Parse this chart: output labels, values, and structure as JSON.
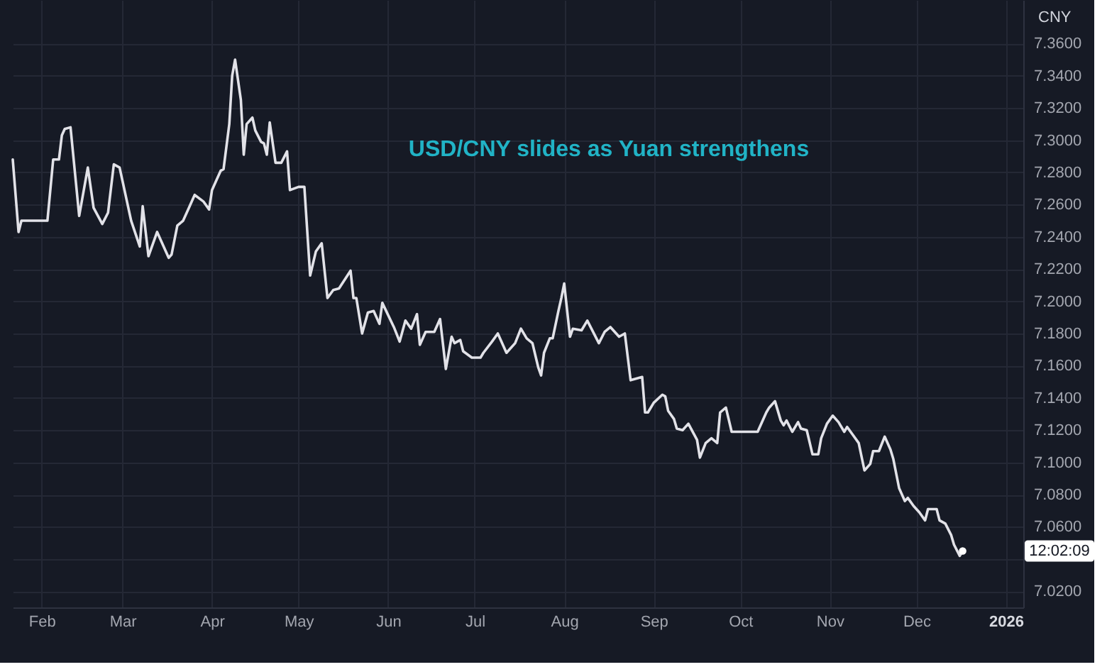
{
  "chart_data": {
    "type": "line",
    "title": "USD/CNY slides as Yuan strengthens",
    "ylabel": "CNY",
    "x": [
      "2025-01-22",
      "2025-01-24",
      "2025-01-25",
      "2025-02-03",
      "2025-02-05",
      "2025-02-07",
      "2025-02-08",
      "2025-02-09",
      "2025-02-11",
      "2025-02-14",
      "2025-02-17",
      "2025-02-19",
      "2025-02-22",
      "2025-02-24",
      "2025-02-26",
      "2025-02-28",
      "2025-03-04",
      "2025-03-07",
      "2025-03-08",
      "2025-03-10",
      "2025-03-13",
      "2025-03-17",
      "2025-03-18",
      "2025-03-20",
      "2025-03-22",
      "2025-03-24",
      "2025-03-26",
      "2025-03-29",
      "2025-03-31",
      "2025-04-01",
      "2025-04-04",
      "2025-04-05",
      "2025-04-07",
      "2025-04-08",
      "2025-04-09",
      "2025-04-11",
      "2025-04-12",
      "2025-04-13",
      "2025-04-15",
      "2025-04-16",
      "2025-04-18",
      "2025-04-19",
      "2025-04-20",
      "2025-04-21",
      "2025-04-23",
      "2025-04-25",
      "2025-04-27",
      "2025-04-28",
      "2025-05-01",
      "2025-05-03",
      "2025-05-05",
      "2025-05-07",
      "2025-05-09",
      "2025-05-11",
      "2025-05-13",
      "2025-05-15",
      "2025-05-19",
      "2025-05-20",
      "2025-05-21",
      "2025-05-23",
      "2025-05-25",
      "2025-05-27",
      "2025-05-29",
      "2025-05-30",
      "2025-06-03",
      "2025-06-05",
      "2025-06-07",
      "2025-06-09",
      "2025-06-11",
      "2025-06-12",
      "2025-06-14",
      "2025-06-17",
      "2025-06-19",
      "2025-06-21",
      "2025-06-23",
      "2025-06-24",
      "2025-06-26",
      "2025-06-27",
      "2025-06-30",
      "2025-07-03",
      "2025-07-04",
      "2025-07-07",
      "2025-07-09",
      "2025-07-12",
      "2025-07-15",
      "2025-07-17",
      "2025-07-19",
      "2025-07-21",
      "2025-07-23",
      "2025-07-24",
      "2025-07-25",
      "2025-07-27",
      "2025-07-28",
      "2025-07-30",
      "2025-07-31",
      "2025-08-01",
      "2025-08-03",
      "2025-08-04",
      "2025-08-07",
      "2025-08-09",
      "2025-08-13",
      "2025-08-15",
      "2025-08-17",
      "2025-08-20",
      "2025-08-22",
      "2025-08-24",
      "2025-08-28",
      "2025-08-29",
      "2025-08-30",
      "2025-09-01",
      "2025-09-04",
      "2025-09-05",
      "2025-09-06",
      "2025-09-08",
      "2025-09-09",
      "2025-09-11",
      "2025-09-13",
      "2025-09-16",
      "2025-09-17",
      "2025-09-19",
      "2025-09-21",
      "2025-09-23",
      "2025-09-24",
      "2025-09-26",
      "2025-09-28",
      "2025-10-07",
      "2025-10-10",
      "2025-10-11",
      "2025-10-13",
      "2025-10-15",
      "2025-10-16",
      "2025-10-17",
      "2025-10-19",
      "2025-10-21",
      "2025-10-22",
      "2025-10-24",
      "2025-10-26",
      "2025-10-28",
      "2025-10-29",
      "2025-10-31",
      "2025-11-02",
      "2025-11-04",
      "2025-11-06",
      "2025-11-07",
      "2025-11-09",
      "2025-11-11",
      "2025-11-13",
      "2025-11-15",
      "2025-11-16",
      "2025-11-18",
      "2025-11-20",
      "2025-11-22",
      "2025-11-23",
      "2025-11-25",
      "2025-11-27",
      "2025-11-28",
      "2025-11-30",
      "2025-12-02",
      "2025-12-04",
      "2025-12-05",
      "2025-12-08",
      "2025-12-09",
      "2025-12-11",
      "2025-12-13",
      "2025-12-14",
      "2025-12-16",
      "2025-12-17"
    ],
    "series": [
      {
        "color": "#e2e2e8",
        "values": [
          7.288,
          7.243,
          7.25,
          7.25,
          7.288,
          7.288,
          7.303,
          7.307,
          7.308,
          7.253,
          7.283,
          7.258,
          7.248,
          7.255,
          7.285,
          7.283,
          7.25,
          7.234,
          7.259,
          7.228,
          7.243,
          7.227,
          7.229,
          7.247,
          7.25,
          7.258,
          7.266,
          7.262,
          7.257,
          7.269,
          7.281,
          7.282,
          7.31,
          7.34,
          7.35,
          7.325,
          7.291,
          7.31,
          7.314,
          7.306,
          7.299,
          7.298,
          7.291,
          7.311,
          7.286,
          7.286,
          7.293,
          7.269,
          7.271,
          7.271,
          7.216,
          7.231,
          7.236,
          7.202,
          7.207,
          7.208,
          7.219,
          7.202,
          7.202,
          7.18,
          7.193,
          7.194,
          7.186,
          7.199,
          7.184,
          7.175,
          7.188,
          7.183,
          7.192,
          7.173,
          7.181,
          7.181,
          7.189,
          7.158,
          7.178,
          7.174,
          7.176,
          7.169,
          7.165,
          7.165,
          7.168,
          7.175,
          7.18,
          7.168,
          7.174,
          7.183,
          7.177,
          7.174,
          7.159,
          7.154,
          7.168,
          7.177,
          7.177,
          7.194,
          7.202,
          7.211,
          7.178,
          7.183,
          7.182,
          7.188,
          7.174,
          7.181,
          7.184,
          7.178,
          7.18,
          7.151,
          7.153,
          7.131,
          7.131,
          7.137,
          7.142,
          7.141,
          7.132,
          7.127,
          7.121,
          7.12,
          7.124,
          7.114,
          7.103,
          7.112,
          7.115,
          7.112,
          7.131,
          7.134,
          7.119,
          7.119,
          7.131,
          7.134,
          7.138,
          7.126,
          7.123,
          7.126,
          7.119,
          7.125,
          7.121,
          7.12,
          7.105,
          7.105,
          7.115,
          7.124,
          7.129,
          7.125,
          7.119,
          7.122,
          7.117,
          7.112,
          7.095,
          7.099,
          7.107,
          7.107,
          7.116,
          7.108,
          7.102,
          7.084,
          7.076,
          7.078,
          7.073,
          7.069,
          7.064,
          7.071,
          7.071,
          7.064,
          7.062,
          7.055,
          7.049,
          7.042,
          7.045
        ]
      }
    ],
    "xlim": [
      "2025-01-22",
      "2026-01-07"
    ],
    "ylim": [
      7.01,
      7.387
    ],
    "xticks": [
      {
        "value": "2025-02-01",
        "label": "Feb"
      },
      {
        "value": "2025-03-01",
        "label": "Mar"
      },
      {
        "value": "2025-04-01",
        "label": "Apr"
      },
      {
        "value": "2025-05-01",
        "label": "May"
      },
      {
        "value": "2025-06-01",
        "label": "Jun"
      },
      {
        "value": "2025-07-01",
        "label": "Jul"
      },
      {
        "value": "2025-08-01",
        "label": "Aug"
      },
      {
        "value": "2025-09-01",
        "label": "Sep"
      },
      {
        "value": "2025-10-01",
        "label": "Oct"
      },
      {
        "value": "2025-11-01",
        "label": "Nov"
      },
      {
        "value": "2025-12-01",
        "label": "Dec"
      },
      {
        "value": "2026-01-01",
        "label": "2026"
      }
    ],
    "yticks": [
      {
        "value": 7.02,
        "label": "7.0200"
      },
      {
        "value": 7.04,
        "label": null
      },
      {
        "value": 7.06,
        "label": "7.0600"
      },
      {
        "value": 7.08,
        "label": "7.0800"
      },
      {
        "value": 7.1,
        "label": "7.1000"
      },
      {
        "value": 7.12,
        "label": "7.1200"
      },
      {
        "value": 7.14,
        "label": "7.1400"
      },
      {
        "value": 7.16,
        "label": "7.1600"
      },
      {
        "value": 7.18,
        "label": "7.1800"
      },
      {
        "value": 7.2,
        "label": "7.2000"
      },
      {
        "value": 7.22,
        "label": "7.2200"
      },
      {
        "value": 7.24,
        "label": "7.2400"
      },
      {
        "value": 7.26,
        "label": "7.2600"
      },
      {
        "value": 7.28,
        "label": "7.2800"
      },
      {
        "value": 7.3,
        "label": "7.3000"
      },
      {
        "value": 7.32,
        "label": "7.3200"
      },
      {
        "value": 7.34,
        "label": "7.3400"
      },
      {
        "value": 7.36,
        "label": "7.3600"
      }
    ],
    "grid": true,
    "annotations": [
      "12:02:09"
    ]
  }
}
